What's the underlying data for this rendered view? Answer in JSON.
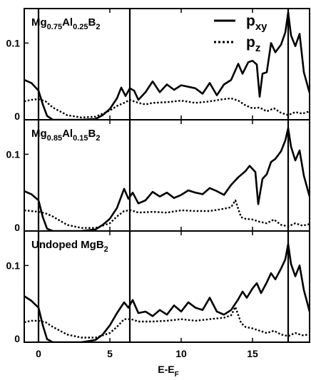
{
  "chart_data": {
    "type": "line",
    "xlabel": "E-E",
    "xlabel_sub": "F",
    "xlim": [
      -1,
      19
    ],
    "x_ticks": [
      0,
      5,
      10,
      15
    ],
    "vlines": [
      0,
      6.4,
      17.5
    ],
    "legend": {
      "position": "top-right",
      "entries": [
        {
          "main": "p",
          "sub": "xy",
          "style": "solid"
        },
        {
          "main": "p",
          "sub": "z",
          "style": "dotted"
        }
      ]
    },
    "panels": [
      {
        "label_parts": [
          [
            "Mg",
            ""
          ],
          [
            "0.75",
            "sub"
          ],
          [
            "Al",
            ""
          ],
          [
            "0.25",
            "sub"
          ],
          [
            "B",
            ""
          ],
          [
            "2",
            "sub"
          ]
        ],
        "ylim": [
          0,
          0.145
        ],
        "y_ticks": [
          0,
          0.1
        ],
        "y_tick_labels": [
          "0",
          "0.1"
        ],
        "series": [
          {
            "name": "p_xy",
            "style": "solid",
            "x": [
              -1,
              -0.5,
              0,
              0.3,
              0.6,
              1,
              2,
              3,
              4,
              4.5,
              5,
              5.5,
              5.8,
              6.1,
              6.4,
              6.7,
              7,
              7.5,
              8,
              8.5,
              9,
              9.5,
              10,
              10.5,
              11,
              11.5,
              12,
              12.5,
              13,
              13.5,
              14,
              14.3,
              14.7,
              15,
              15.3,
              15.5,
              15.7,
              16,
              16.3,
              16.6,
              17,
              17.3,
              17.5,
              17.7,
              18,
              18.3,
              18.6,
              19
            ],
            "y": [
              0.052,
              0.048,
              0.038,
              0.02,
              0.005,
              0,
              0,
              0,
              0.001,
              0.006,
              0.014,
              0.028,
              0.042,
              0.031,
              0.041,
              0.038,
              0.026,
              0.036,
              0.05,
              0.036,
              0.046,
              0.039,
              0.045,
              0.043,
              0.041,
              0.034,
              0.048,
              0.032,
              0.046,
              0.052,
              0.073,
              0.06,
              0.075,
              0.077,
              0.072,
              0.03,
              0.06,
              0.062,
              0.1,
              0.088,
              0.098,
              0.114,
              0.14,
              0.11,
              0.096,
              0.112,
              0.062,
              0.035
            ]
          },
          {
            "name": "p_z",
            "style": "dotted",
            "x": [
              -1,
              -0.5,
              0,
              0.5,
              1,
              2,
              3,
              4,
              5,
              5.5,
              6,
              6.4,
              7,
              7.5,
              8,
              9,
              10,
              11,
              12,
              13,
              13.5,
              14,
              14.5,
              15,
              15.5,
              16,
              16.5,
              17,
              17.5,
              18,
              18.5,
              19
            ],
            "y": [
              0.024,
              0.026,
              0.027,
              0.024,
              0.016,
              0.006,
              0.003,
              0.004,
              0.012,
              0.018,
              0.022,
              0.026,
              0.022,
              0.02,
              0.022,
              0.023,
              0.025,
              0.022,
              0.024,
              0.027,
              0.028,
              0.025,
              0.019,
              0.015,
              0.016,
              0.011,
              0.015,
              0.009,
              0.006,
              0.01,
              0.008,
              0.011
            ]
          }
        ]
      },
      {
        "label_parts": [
          [
            "Mg",
            ""
          ],
          [
            "0.85",
            "sub"
          ],
          [
            "Al",
            ""
          ],
          [
            "0.15",
            "sub"
          ],
          [
            "B",
            ""
          ],
          [
            "2",
            "sub"
          ]
        ],
        "ylim": [
          0,
          0.145
        ],
        "y_ticks": [
          0,
          0.1
        ],
        "y_tick_labels": [
          "0",
          "0.1"
        ],
        "series": [
          {
            "name": "p_xy",
            "style": "solid",
            "x": [
              -1,
              -0.5,
              0,
              0.3,
              0.6,
              1,
              2,
              3,
              4,
              4.5,
              5,
              5.5,
              6,
              6.3,
              6.6,
              7,
              7.5,
              8,
              8.5,
              9,
              9.5,
              10,
              10.5,
              11,
              11.5,
              12,
              12.5,
              13,
              13.5,
              14,
              14.5,
              14.8,
              15.2,
              15.4,
              15.7,
              16,
              16.3,
              16.6,
              17,
              17.3,
              17.5,
              17.7,
              18,
              18.3,
              18.6,
              19
            ],
            "y": [
              0.052,
              0.048,
              0.04,
              0.018,
              0.003,
              0,
              0,
              0,
              0.002,
              0.008,
              0.016,
              0.03,
              0.055,
              0.042,
              0.05,
              0.036,
              0.04,
              0.051,
              0.045,
              0.05,
              0.043,
              0.047,
              0.053,
              0.05,
              0.048,
              0.056,
              0.052,
              0.047,
              0.06,
              0.07,
              0.078,
              0.085,
              0.077,
              0.035,
              0.068,
              0.074,
              0.09,
              0.094,
              0.104,
              0.118,
              0.134,
              0.11,
              0.092,
              0.105,
              0.072,
              0.045
            ]
          },
          {
            "name": "p_z",
            "style": "dotted",
            "x": [
              -1,
              -0.5,
              0,
              0.5,
              1,
              2,
              3,
              4,
              5,
              5.5,
              6,
              6.5,
              7,
              8,
              9,
              10,
              11,
              12,
              13,
              13.5,
              13.8,
              14.2,
              14.5,
              15,
              15.5,
              16,
              16.5,
              17,
              17.5,
              18,
              18.5,
              19
            ],
            "y": [
              0.027,
              0.026,
              0.025,
              0.023,
              0.019,
              0.008,
              0.004,
              0.004,
              0.01,
              0.019,
              0.026,
              0.027,
              0.024,
              0.025,
              0.024,
              0.027,
              0.026,
              0.026,
              0.029,
              0.031,
              0.04,
              0.018,
              0.016,
              0.015,
              0.012,
              0.01,
              0.015,
              0.008,
              0.006,
              0.01,
              0.007,
              0.009
            ]
          }
        ]
      },
      {
        "label_parts": [
          [
            "Undoped MgB",
            ""
          ],
          [
            "2",
            "sub"
          ]
        ],
        "ylim": [
          0,
          0.145
        ],
        "y_ticks": [
          0,
          0.1
        ],
        "y_tick_labels": [
          "0",
          "0.1"
        ],
        "series": [
          {
            "name": "p_xy",
            "style": "solid",
            "x": [
              -1,
              -0.5,
              0,
              0.3,
              0.6,
              1,
              2,
              3,
              4,
              4.5,
              5,
              5.5,
              6,
              6.3,
              6.6,
              7,
              7.5,
              8,
              8.5,
              9,
              9.5,
              10,
              10.5,
              11,
              11.5,
              12,
              12.5,
              13,
              13.5,
              14,
              14.3,
              14.6,
              15,
              15.3,
              15.6,
              16,
              16.3,
              16.6,
              17,
              17.3,
              17.5,
              17.7,
              18,
              18.3,
              18.6,
              19
            ],
            "y": [
              0.06,
              0.054,
              0.045,
              0.022,
              0.004,
              0,
              0,
              0,
              0.003,
              0.01,
              0.022,
              0.038,
              0.052,
              0.045,
              0.055,
              0.038,
              0.04,
              0.034,
              0.042,
              0.036,
              0.048,
              0.04,
              0.052,
              0.045,
              0.042,
              0.058,
              0.04,
              0.036,
              0.042,
              0.056,
              0.066,
              0.058,
              0.07,
              0.077,
              0.064,
              0.078,
              0.09,
              0.082,
              0.096,
              0.108,
              0.128,
              0.102,
              0.086,
              0.1,
              0.068,
              0.04
            ]
          },
          {
            "name": "p_z",
            "style": "dotted",
            "x": [
              -1,
              -0.5,
              0,
              0.5,
              1,
              2,
              3,
              4,
              5,
              5.5,
              6,
              6.5,
              7,
              8,
              9,
              10,
              11,
              12,
              13,
              13.5,
              13.8,
              14.2,
              14.5,
              15,
              15.5,
              16,
              16.5,
              17,
              17.5,
              18,
              18.5,
              19
            ],
            "y": [
              0.026,
              0.028,
              0.028,
              0.026,
              0.02,
              0.01,
              0.006,
              0.006,
              0.012,
              0.02,
              0.03,
              0.03,
              0.027,
              0.027,
              0.028,
              0.03,
              0.028,
              0.03,
              0.032,
              0.035,
              0.046,
              0.025,
              0.02,
              0.018,
              0.015,
              0.012,
              0.015,
              0.01,
              0.008,
              0.012,
              0.009,
              0.01
            ]
          }
        ]
      }
    ]
  }
}
